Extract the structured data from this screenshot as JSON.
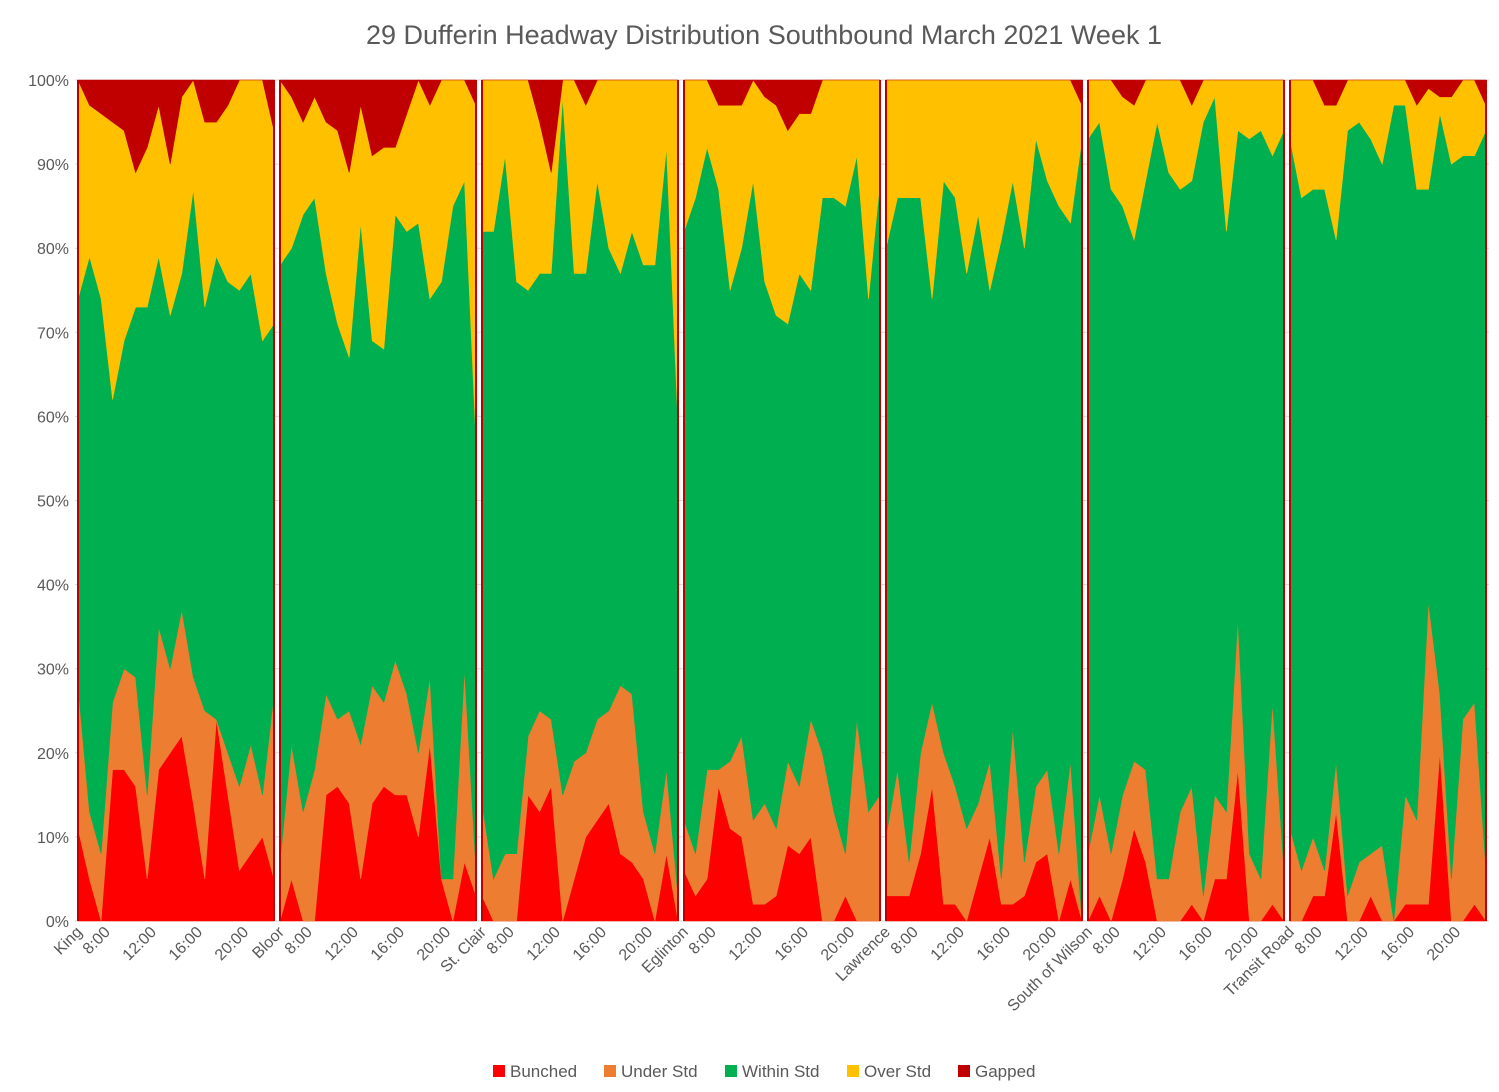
{
  "chart_data": {
    "type": "area",
    "stacked_percent": true,
    "title": "29 Dufferin  Headway Distribution Southbound March 2021 Week 1",
    "xlabel": "",
    "ylabel": "",
    "ylim": [
      0,
      100
    ],
    "grid": true,
    "legend_position": "bottom",
    "y_ticks": [
      "0%",
      "10%",
      "20%",
      "30%",
      "40%",
      "50%",
      "60%",
      "70%",
      "80%",
      "90%",
      "100%"
    ],
    "x_hours": [
      6,
      7,
      8,
      9,
      10,
      11,
      12,
      13,
      14,
      15,
      16,
      17,
      18,
      19,
      20,
      21,
      22,
      23
    ],
    "x_tick_labels": [
      "8:00",
      "12:00",
      "16:00",
      "20:00"
    ],
    "stations": [
      {
        "name": "King",
        "bunched": [
          11,
          5,
          0,
          18,
          18,
          16,
          5,
          18,
          20,
          22,
          14,
          5,
          24,
          15,
          6,
          8,
          10,
          5
        ],
        "under": [
          17,
          8,
          8,
          8,
          12,
          13,
          10,
          17,
          10,
          15,
          15,
          20,
          0,
          5,
          10,
          13,
          5,
          22
        ],
        "within": [
          46,
          66,
          66,
          36,
          39,
          44,
          58,
          44,
          42,
          40,
          58,
          48,
          55,
          56,
          59,
          56,
          54,
          44
        ],
        "over": [
          26,
          18,
          22,
          33,
          25,
          16,
          19,
          18,
          18,
          21,
          13,
          22,
          16,
          21,
          25,
          23,
          31,
          23
        ],
        "gapped": [
          0,
          3,
          4,
          5,
          6,
          11,
          8,
          3,
          10,
          2,
          0,
          5,
          5,
          3,
          0,
          0,
          0,
          6
        ]
      },
      {
        "name": "Bloor",
        "bunched": [
          0,
          5,
          0,
          0,
          15,
          16,
          14,
          5,
          14,
          16,
          15,
          15,
          10,
          21,
          5,
          0,
          7,
          3
        ],
        "under": [
          7,
          16,
          13,
          18,
          12,
          8,
          11,
          16,
          14,
          10,
          16,
          12,
          10,
          8,
          0,
          5,
          23,
          3
        ],
        "within": [
          71,
          59,
          71,
          68,
          50,
          47,
          42,
          62,
          41,
          42,
          53,
          55,
          63,
          45,
          71,
          80,
          58,
          51
        ],
        "over": [
          22,
          18,
          11,
          12,
          18,
          23,
          22,
          14,
          22,
          24,
          8,
          14,
          17,
          23,
          24,
          15,
          12,
          40
        ],
        "gapped": [
          0,
          2,
          5,
          2,
          5,
          6,
          11,
          3,
          9,
          8,
          8,
          4,
          0,
          3,
          0,
          0,
          0,
          3
        ]
      },
      {
        "name": "St. Clair",
        "bunched": [
          3,
          0,
          0,
          0,
          15,
          13,
          16,
          0,
          5,
          10,
          12,
          14,
          8,
          7,
          5,
          0,
          8,
          0
        ],
        "under": [
          11,
          5,
          8,
          8,
          7,
          12,
          8,
          15,
          14,
          10,
          12,
          11,
          20,
          20,
          8,
          8,
          10,
          3
        ],
        "within": [
          68,
          77,
          83,
          68,
          53,
          52,
          53,
          83,
          58,
          57,
          64,
          55,
          49,
          55,
          65,
          70,
          74,
          56
        ],
        "over": [
          18,
          18,
          9,
          24,
          25,
          18,
          12,
          2,
          23,
          20,
          12,
          20,
          23,
          18,
          22,
          22,
          8,
          41
        ],
        "gapped": [
          0,
          0,
          0,
          0,
          0,
          5,
          11,
          0,
          0,
          3,
          0,
          0,
          0,
          0,
          0,
          0,
          0,
          0
        ]
      },
      {
        "name": "Eglinton",
        "bunched": [
          6,
          3,
          5,
          16,
          11,
          10,
          2,
          2,
          3,
          9,
          8,
          10,
          0,
          0,
          3,
          0,
          0,
          0
        ],
        "under": [
          6,
          5,
          13,
          2,
          8,
          12,
          10,
          12,
          8,
          10,
          8,
          14,
          20,
          13,
          5,
          24,
          13,
          15
        ],
        "within": [
          70,
          78,
          74,
          69,
          56,
          58,
          76,
          62,
          61,
          52,
          61,
          51,
          66,
          73,
          77,
          67,
          61,
          73
        ],
        "over": [
          18,
          14,
          8,
          10,
          22,
          17,
          12,
          22,
          25,
          23,
          19,
          21,
          14,
          14,
          15,
          9,
          26,
          12
        ],
        "gapped": [
          0,
          0,
          0,
          3,
          3,
          3,
          0,
          2,
          3,
          6,
          4,
          4,
          0,
          0,
          0,
          0,
          0,
          0
        ]
      },
      {
        "name": "Lawrence",
        "bunched": [
          3,
          3,
          3,
          8,
          16,
          2,
          2,
          0,
          5,
          10,
          2,
          2,
          3,
          7,
          8,
          0,
          5,
          0
        ],
        "under": [
          7,
          15,
          4,
          12,
          10,
          18,
          14,
          11,
          9,
          9,
          3,
          21,
          4,
          9,
          10,
          8,
          14,
          0
        ],
        "within": [
          70,
          68,
          79,
          66,
          48,
          68,
          70,
          66,
          70,
          56,
          76,
          65,
          73,
          77,
          70,
          77,
          64,
          93
        ],
        "over": [
          20,
          14,
          14,
          14,
          26,
          12,
          14,
          23,
          16,
          25,
          19,
          12,
          20,
          7,
          12,
          15,
          17,
          4
        ],
        "gapped": [
          0,
          0,
          0,
          0,
          0,
          0,
          0,
          0,
          0,
          0,
          0,
          0,
          0,
          0,
          0,
          0,
          0,
          3
        ]
      },
      {
        "name": "South of Wilson",
        "bunched": [
          0,
          3,
          0,
          5,
          11,
          7,
          0,
          0,
          0,
          2,
          0,
          5,
          5,
          18,
          0,
          0,
          2,
          0
        ],
        "under": [
          8,
          12,
          8,
          10,
          8,
          11,
          5,
          5,
          13,
          14,
          3,
          10,
          8,
          18,
          8,
          5,
          24,
          6
        ],
        "within": [
          85,
          80,
          79,
          70,
          62,
          70,
          90,
          84,
          74,
          72,
          92,
          83,
          69,
          58,
          85,
          89,
          65,
          88
        ],
        "over": [
          7,
          5,
          13,
          13,
          16,
          12,
          5,
          11,
          13,
          9,
          5,
          2,
          18,
          6,
          7,
          6,
          9,
          6
        ],
        "gapped": [
          0,
          0,
          0,
          2,
          3,
          0,
          0,
          0,
          0,
          3,
          0,
          0,
          0,
          0,
          0,
          0,
          0,
          0
        ]
      },
      {
        "name": "Transit Road",
        "bunched": [
          0,
          0,
          3,
          3,
          13,
          0,
          0,
          3,
          0,
          0,
          2,
          2,
          2,
          20,
          0,
          0,
          2,
          0
        ],
        "under": [
          11,
          6,
          7,
          3,
          6,
          3,
          7,
          5,
          9,
          0,
          13,
          10,
          36,
          7,
          5,
          24,
          24,
          6
        ],
        "within": [
          82,
          80,
          77,
          81,
          62,
          91,
          88,
          85,
          81,
          97,
          82,
          75,
          49,
          69,
          85,
          67,
          65,
          88
        ],
        "over": [
          7,
          14,
          13,
          10,
          16,
          6,
          5,
          7,
          10,
          3,
          3,
          10,
          12,
          2,
          8,
          9,
          9,
          3
        ],
        "gapped": [
          0,
          0,
          0,
          3,
          3,
          0,
          0,
          0,
          0,
          0,
          0,
          3,
          1,
          2,
          2,
          0,
          0,
          3
        ]
      }
    ],
    "series": [
      {
        "key": "bunched",
        "name": "Bunched",
        "color": "#ff0000"
      },
      {
        "key": "under",
        "name": "Under Std",
        "color": "#ed7d31"
      },
      {
        "key": "within",
        "name": "Within Std",
        "color": "#00b050"
      },
      {
        "key": "over",
        "name": "Over Std",
        "color": "#ffc000"
      },
      {
        "key": "gapped",
        "name": "Gapped",
        "color": "#c00000"
      }
    ]
  }
}
